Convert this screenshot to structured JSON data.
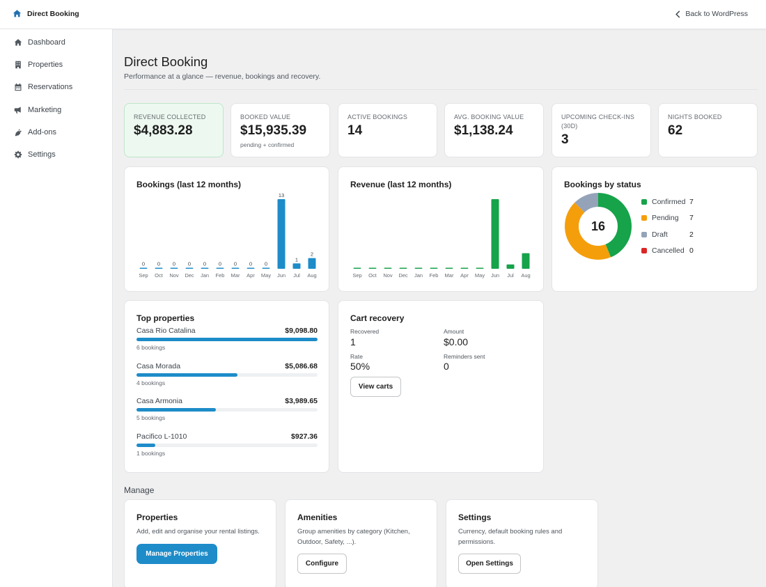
{
  "header": {
    "brand": "Direct Booking",
    "back_link": "Back to WordPress",
    "brand_icon": "home-icon",
    "back_icon": "chevron-left-icon"
  },
  "sidebar": {
    "items": [
      {
        "label": "Dashboard",
        "icon": "home-icon"
      },
      {
        "label": "Properties",
        "icon": "building-icon"
      },
      {
        "label": "Reservations",
        "icon": "calendar-icon"
      },
      {
        "label": "Marketing",
        "icon": "megaphone-icon"
      },
      {
        "label": "Add-ons",
        "icon": "plugin-icon"
      },
      {
        "label": "Settings",
        "icon": "gear-icon"
      }
    ]
  },
  "page": {
    "title": "Direct Booking",
    "subtitle": "Performance at a glance — revenue, bookings and recovery."
  },
  "kpis": [
    {
      "label": "REVENUE COLLECTED",
      "value": "$4,883.28",
      "note": ""
    },
    {
      "label": "BOOKED VALUE",
      "value": "$15,935.39",
      "note": "pending + confirmed"
    },
    {
      "label": "ACTIVE BOOKINGS",
      "value": "14",
      "note": ""
    },
    {
      "label": "AVG. BOOKING VALUE",
      "value": "$1,138.24",
      "note": ""
    },
    {
      "label": "UPCOMING CHECK-INS (30D)",
      "value": "3",
      "note": ""
    },
    {
      "label": "NIGHTS BOOKED",
      "value": "62",
      "note": ""
    }
  ],
  "bookings_chart": {
    "title": "Bookings (last 12 months)"
  },
  "revenue_chart": {
    "title": "Revenue (last 12 months)"
  },
  "status_chart": {
    "title": "Bookings by status",
    "total": "16"
  },
  "chart_data": [
    {
      "type": "bar",
      "title": "Bookings (last 12 months)",
      "categories": [
        "Sep",
        "Oct",
        "Nov",
        "Dec",
        "Jan",
        "Feb",
        "Mar",
        "Apr",
        "May",
        "Jun",
        "Jul",
        "Aug"
      ],
      "values": [
        0,
        0,
        0,
        0,
        0,
        0,
        0,
        0,
        0,
        13,
        1,
        2
      ],
      "data_labels": true,
      "color": "#1e8cc9"
    },
    {
      "type": "bar",
      "title": "Revenue (last 12 months)",
      "categories": [
        "Sep",
        "Oct",
        "Nov",
        "Dec",
        "Jan",
        "Feb",
        "Mar",
        "Apr",
        "May",
        "Jun",
        "Jul",
        "Aug"
      ],
      "values": [
        0,
        0,
        0,
        0,
        0,
        0,
        0,
        0,
        0,
        4300,
        270,
        960
      ],
      "data_labels": false,
      "color": "#16a34a"
    },
    {
      "type": "pie",
      "title": "Bookings by status",
      "center_label": "16",
      "slices": [
        {
          "name": "Confirmed",
          "value": 7,
          "color": "#16a34a"
        },
        {
          "name": "Pending",
          "value": 7,
          "color": "#f59e0b"
        },
        {
          "name": "Draft",
          "value": 2,
          "color": "#94a3b8"
        },
        {
          "name": "Cancelled",
          "value": 0,
          "color": "#dc2626"
        }
      ]
    }
  ],
  "top_properties": {
    "title": "Top properties",
    "items": [
      {
        "name": "Casa Rio Catalina",
        "amount": "$9,098.80",
        "count": "6 bookings",
        "share": 1.0
      },
      {
        "name": "Casa Morada",
        "amount": "$5,086.68",
        "count": "4 bookings",
        "share": 0.559
      },
      {
        "name": "Casa Armonia",
        "amount": "$3,989.65",
        "count": "5 bookings",
        "share": 0.438
      },
      {
        "name": "Pacifico L-1010",
        "amount": "$927.36",
        "count": "1 bookings",
        "share": 0.102
      }
    ]
  },
  "cart_recovery": {
    "title": "Cart recovery",
    "recovered_label": "Recovered",
    "recovered_value": "1",
    "amount_label": "Amount",
    "amount_value": "$0.00",
    "rate_label": "Rate",
    "rate_value": "50%",
    "reminders_label": "Reminders sent",
    "reminders_value": "0",
    "button": "View carts"
  },
  "manage": {
    "section_title": "Manage",
    "cards": [
      {
        "title": "Properties",
        "desc": "Add, edit and organise your rental listings.",
        "button": "Manage Properties"
      },
      {
        "title": "Amenities",
        "desc": "Group amenities by category (Kitchen, Outdoor, Safety, ...).",
        "button": "Configure"
      },
      {
        "title": "Settings",
        "desc": "Currency, default booking rules and permissions.",
        "button": "Open Settings"
      }
    ]
  }
}
